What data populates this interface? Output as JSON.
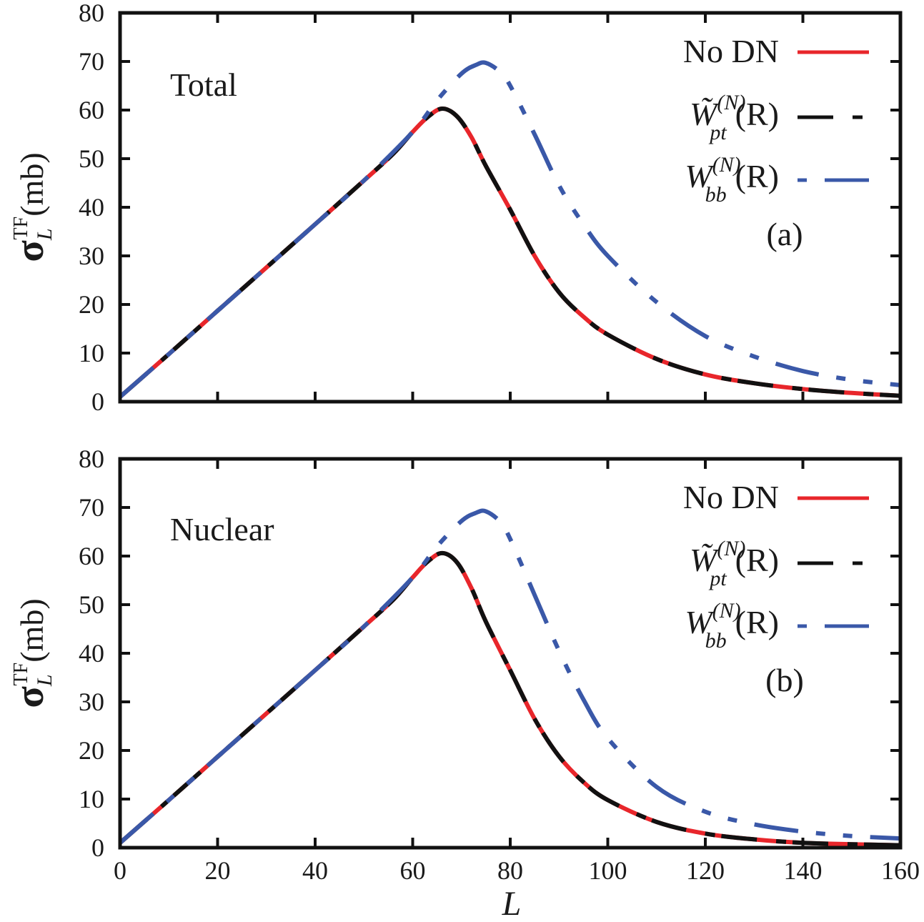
{
  "chart_data": [
    {
      "type": "line",
      "panel_label": "(a)",
      "title": "Total",
      "xlabel": "L",
      "ylabel": "σ_L^TF(mb)",
      "xlim": [
        0,
        160
      ],
      "ylim": [
        0,
        80
      ],
      "xticks": [
        "0",
        "20",
        "40",
        "60",
        "80",
        "100",
        "120",
        "140",
        "160"
      ],
      "yticks": [
        "0",
        "10",
        "20",
        "30",
        "40",
        "50",
        "60",
        "70",
        "80"
      ],
      "grid": false,
      "legend_position": "top-right",
      "series": [
        {
          "name": "No DN",
          "style": "solid",
          "color": "#e8262b",
          "x": [
            0,
            10,
            20,
            30,
            40,
            50,
            56,
            60,
            63,
            66,
            69,
            72,
            75,
            80,
            85,
            90,
            95,
            100,
            110,
            120,
            130,
            140,
            150,
            160
          ],
          "y": [
            1,
            9.8,
            18.7,
            27.6,
            36.5,
            45.5,
            51.0,
            55.5,
            58.5,
            60.3,
            58.8,
            54.5,
            48.5,
            39.5,
            30.0,
            22.5,
            17.5,
            13.8,
            8.8,
            5.6,
            3.8,
            2.6,
            1.8,
            1.2
          ]
        },
        {
          "name": "W̃_pt^(N)(R)",
          "style": "dashed",
          "color": "#111111",
          "x": [
            0,
            10,
            20,
            30,
            40,
            50,
            56,
            60,
            63,
            66,
            69,
            72,
            75,
            80,
            85,
            90,
            95,
            100,
            110,
            120,
            130,
            140,
            150,
            160
          ],
          "y": [
            1,
            9.8,
            18.7,
            27.6,
            36.5,
            45.5,
            51.0,
            55.5,
            58.5,
            60.3,
            58.8,
            54.5,
            48.5,
            39.5,
            30.0,
            22.5,
            17.5,
            13.8,
            8.8,
            5.6,
            3.8,
            2.6,
            1.8,
            1.2
          ]
        },
        {
          "name": "W_bb^(N)(R)",
          "style": "dash-dot-dot",
          "color": "#3a58a8",
          "x": [
            0,
            10,
            20,
            30,
            40,
            50,
            60,
            65,
            70,
            73,
            75,
            78,
            80,
            85,
            90,
            95,
            100,
            110,
            120,
            130,
            140,
            150,
            160
          ],
          "y": [
            1,
            9.8,
            18.7,
            27.6,
            36.5,
            45.5,
            55.5,
            62.0,
            67.5,
            69.3,
            69.7,
            67.8,
            65.0,
            55.0,
            44.5,
            36.5,
            30.0,
            20.5,
            13.5,
            9.3,
            6.3,
            4.5,
            3.4
          ]
        }
      ]
    },
    {
      "type": "line",
      "panel_label": "(b)",
      "title": "Nuclear",
      "xlabel": "L",
      "ylabel": "σ_L^TF(mb)",
      "xlim": [
        0,
        160
      ],
      "ylim": [
        0,
        80
      ],
      "xticks": [
        "0",
        "20",
        "40",
        "60",
        "80",
        "100",
        "120",
        "140",
        "160"
      ],
      "yticks": [
        "0",
        "10",
        "20",
        "30",
        "40",
        "50",
        "60",
        "70",
        "80"
      ],
      "grid": false,
      "legend_position": "top-right",
      "series": [
        {
          "name": "No DN",
          "style": "solid",
          "color": "#e8262b",
          "x": [
            0,
            10,
            20,
            30,
            40,
            50,
            56,
            60,
            63,
            66,
            69,
            72,
            75,
            80,
            85,
            90,
            95,
            100,
            110,
            120,
            130,
            140,
            150,
            160
          ],
          "y": [
            1,
            9.8,
            18.7,
            27.6,
            36.5,
            45.5,
            51.0,
            55.6,
            58.8,
            60.6,
            58.8,
            53.5,
            46.5,
            36.5,
            26.5,
            18.8,
            13.5,
            9.8,
            5.3,
            2.9,
            1.7,
            1.0,
            0.7,
            0.5
          ]
        },
        {
          "name": "W̃_pt^(N)(R)",
          "style": "dashed",
          "color": "#111111",
          "x": [
            0,
            10,
            20,
            30,
            40,
            50,
            56,
            60,
            63,
            66,
            69,
            72,
            75,
            80,
            85,
            90,
            95,
            100,
            110,
            120,
            130,
            140,
            150,
            160
          ],
          "y": [
            1,
            9.8,
            18.7,
            27.6,
            36.5,
            45.5,
            51.0,
            55.6,
            58.8,
            60.6,
            58.8,
            53.5,
            46.5,
            36.5,
            26.5,
            18.8,
            13.5,
            9.8,
            5.3,
            2.9,
            1.7,
            1.0,
            0.7,
            0.5
          ]
        },
        {
          "name": "W_bb^(N)(R)",
          "style": "dash-dot-dot",
          "color": "#3a58a8",
          "x": [
            0,
            10,
            20,
            30,
            40,
            50,
            60,
            65,
            70,
            73,
            75,
            78,
            80,
            85,
            90,
            95,
            100,
            110,
            120,
            130,
            140,
            150,
            160
          ],
          "y": [
            1,
            9.8,
            18.7,
            27.6,
            36.5,
            45.5,
            55.6,
            62.0,
            67.2,
            68.9,
            69.2,
            67.0,
            63.5,
            52.0,
            40.5,
            30.5,
            22.5,
            12.5,
            7.4,
            4.8,
            3.3,
            2.4,
            1.9
          ]
        }
      ]
    }
  ],
  "legend": {
    "no_dn": "No DN",
    "pt_base": "W̃",
    "pt_sup": "(N)",
    "pt_sub": "pt",
    "bb_base": "W",
    "bb_sup": "(N)",
    "bb_sub": "bb",
    "arg": "(R)"
  },
  "axis_text": {
    "y_sigma": "σ",
    "y_sub": "L",
    "y_sup": "TF",
    "y_unit": "(mb)",
    "x": "L"
  }
}
